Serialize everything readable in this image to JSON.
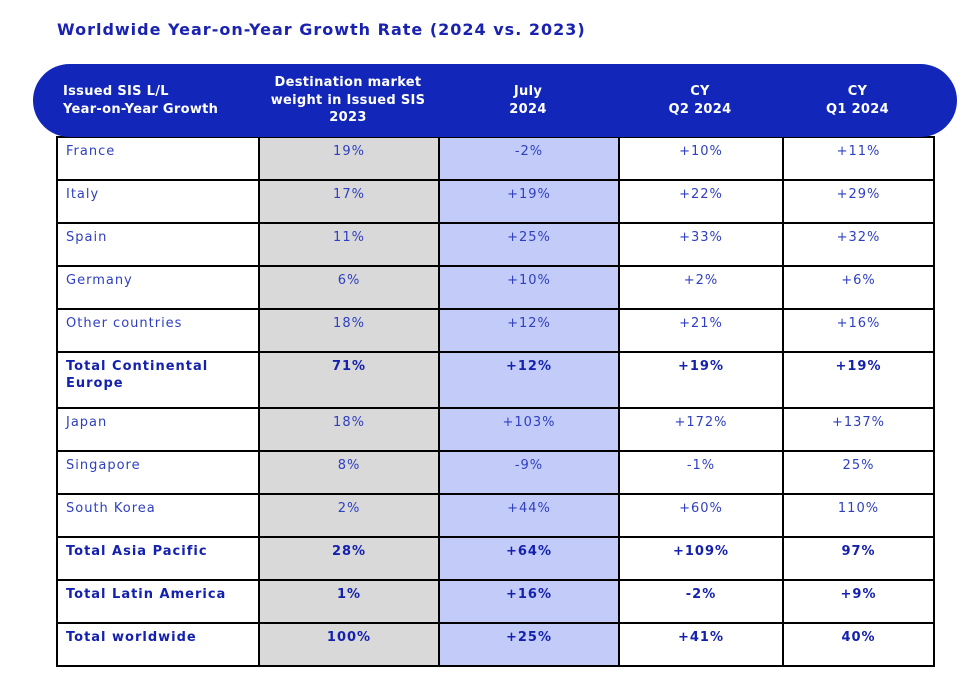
{
  "title": "Worldwide Year-on-Year Growth Rate (2024 vs. 2023)",
  "colors": {
    "header_bg": "#1227b9",
    "header_text": "#ffffff",
    "weight_column_bg": "#d9d9d9",
    "july_column_bg": "#c3ccf9",
    "row_text": "#2e3fc0",
    "total_text": "#1420ae",
    "title_text": "#1a22b0",
    "border": "#000000"
  },
  "table": {
    "columns": [
      {
        "label": "Issued SIS L/L\nYear-on-Year Growth"
      },
      {
        "label": "Destination market\nweight in Issued SIS\n2023"
      },
      {
        "label": "July\n2024"
      },
      {
        "label": "CY\nQ2 2024"
      },
      {
        "label": "CY\nQ1 2024"
      }
    ],
    "rows": [
      {
        "label": "France",
        "weight": "19%",
        "july": "-2%",
        "q2": "+10%",
        "q1": "+11%",
        "bold": false,
        "tall": false
      },
      {
        "label": "Italy",
        "weight": "17%",
        "july": "+19%",
        "q2": "+22%",
        "q1": "+29%",
        "bold": false,
        "tall": false
      },
      {
        "label": "Spain",
        "weight": "11%",
        "july": "+25%",
        "q2": "+33%",
        "q1": "+32%",
        "bold": false,
        "tall": false
      },
      {
        "label": "Germany",
        "weight": "6%",
        "july": "+10%",
        "q2": "+2%",
        "q1": "+6%",
        "bold": false,
        "tall": false
      },
      {
        "label": "Other countries",
        "weight": "18%",
        "july": "+12%",
        "q2": "+21%",
        "q1": "+16%",
        "bold": false,
        "tall": false
      },
      {
        "label": "Total Continental Europe",
        "weight": "71%",
        "july": "+12%",
        "q2": "+19%",
        "q1": "+19%",
        "bold": true,
        "tall": true
      },
      {
        "label": "Japan",
        "weight": "18%",
        "july": "+103%",
        "q2": "+172%",
        "q1": "+137%",
        "bold": false,
        "tall": false
      },
      {
        "label": "Singapore",
        "weight": "8%",
        "july": "-9%",
        "q2": "-1%",
        "q1": "25%",
        "bold": false,
        "tall": false
      },
      {
        "label": "South Korea",
        "weight": "2%",
        "july": "+44%",
        "q2": "+60%",
        "q1": "110%",
        "bold": false,
        "tall": false
      },
      {
        "label": "Total Asia Pacific",
        "weight": "28%",
        "july": "+64%",
        "q2": "+109%",
        "q1": "97%",
        "bold": true,
        "tall": false
      },
      {
        "label": "Total Latin America",
        "weight": "1%",
        "july": "+16%",
        "q2": "-2%",
        "q1": "+9%",
        "bold": true,
        "tall": false
      },
      {
        "label": "Total worldwide",
        "weight": "100%",
        "july": "+25%",
        "q2": "+41%",
        "q1": "40%",
        "bold": true,
        "tall": false
      }
    ]
  }
}
